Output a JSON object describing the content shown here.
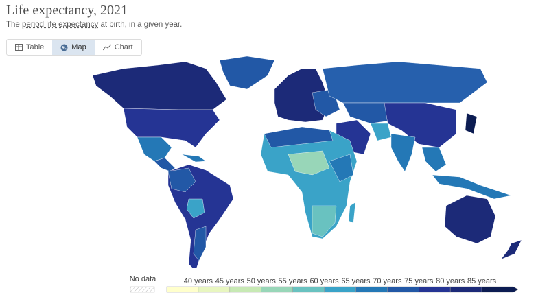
{
  "header": {
    "title": "Life expectancy, 2021",
    "subtitle": [
      "The",
      "period life expectancy",
      "at birth, in a given year."
    ]
  },
  "tabs": [
    "Table",
    "Map",
    "Chart"
  ],
  "legend": {
    "no_data": "No data",
    "labels": [
      "40 years",
      "45 years",
      "50 years",
      "55 years",
      "60 years",
      "65 years",
      "70 years",
      "75 years",
      "80 years",
      "85 years"
    ],
    "colors": [
      "#ffffcc",
      "#e8f6c0",
      "#c7e9b4",
      "#98d6b8",
      "#69c2c0",
      "#3aa3c8",
      "#2478b6",
      "#2258a6",
      "#253494",
      "#1c2a78",
      "#0c1c52"
    ]
  }
}
